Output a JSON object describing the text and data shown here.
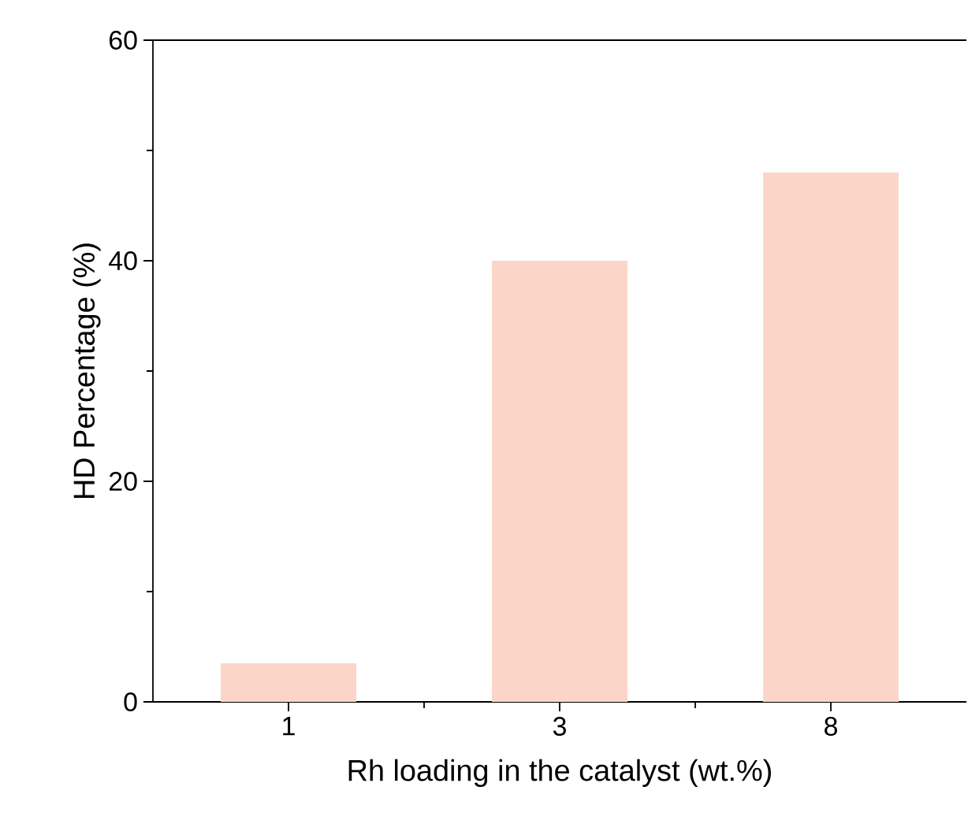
{
  "chart_data": {
    "type": "bar",
    "xlabel": "Rh loading in the catalyst (wt.%)",
    "ylabel": "HD Percentage (%)",
    "categories": [
      "1",
      "3",
      "8"
    ],
    "values": [
      3.5,
      40,
      48
    ],
    "color": "#fbd6c8",
    "ylim": [
      0,
      60
    ],
    "yticks": [
      0,
      20,
      40,
      60
    ]
  }
}
